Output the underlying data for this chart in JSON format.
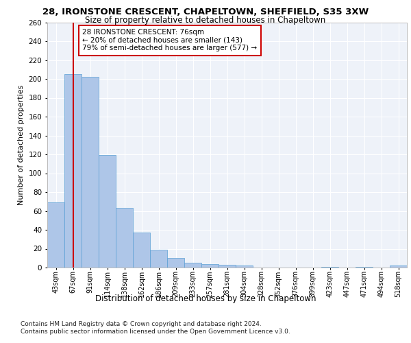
{
  "title_line1": "28, IRONSTONE CRESCENT, CHAPELTOWN, SHEFFIELD, S35 3XW",
  "title_line2": "Size of property relative to detached houses in Chapeltown",
  "xlabel": "Distribution of detached houses by size in Chapeltown",
  "ylabel": "Number of detached properties",
  "categories": [
    "43sqm",
    "67sqm",
    "91sqm",
    "114sqm",
    "138sqm",
    "162sqm",
    "186sqm",
    "209sqm",
    "233sqm",
    "257sqm",
    "281sqm",
    "304sqm",
    "328sqm",
    "352sqm",
    "376sqm",
    "399sqm",
    "423sqm",
    "447sqm",
    "471sqm",
    "494sqm",
    "518sqm"
  ],
  "values": [
    69,
    205,
    202,
    119,
    63,
    37,
    19,
    10,
    5,
    4,
    3,
    2,
    0,
    0,
    0,
    0,
    1,
    0,
    1,
    0,
    2
  ],
  "bar_color": "#aec6e8",
  "bar_edge_color": "#5a9fd4",
  "vline_x": 1,
  "vline_color": "#cc0000",
  "annotation_text": "28 IRONSTONE CRESCENT: 76sqm\n← 20% of detached houses are smaller (143)\n79% of semi-detached houses are larger (577) →",
  "annotation_box_color": "#ffffff",
  "annotation_box_edge": "#cc0000",
  "ylim": [
    0,
    260
  ],
  "yticks": [
    0,
    20,
    40,
    60,
    80,
    100,
    120,
    140,
    160,
    180,
    200,
    220,
    240,
    260
  ],
  "bg_color": "#eef2f9",
  "grid_color": "#ffffff",
  "footer": "Contains HM Land Registry data © Crown copyright and database right 2024.\nContains public sector information licensed under the Open Government Licence v3.0."
}
